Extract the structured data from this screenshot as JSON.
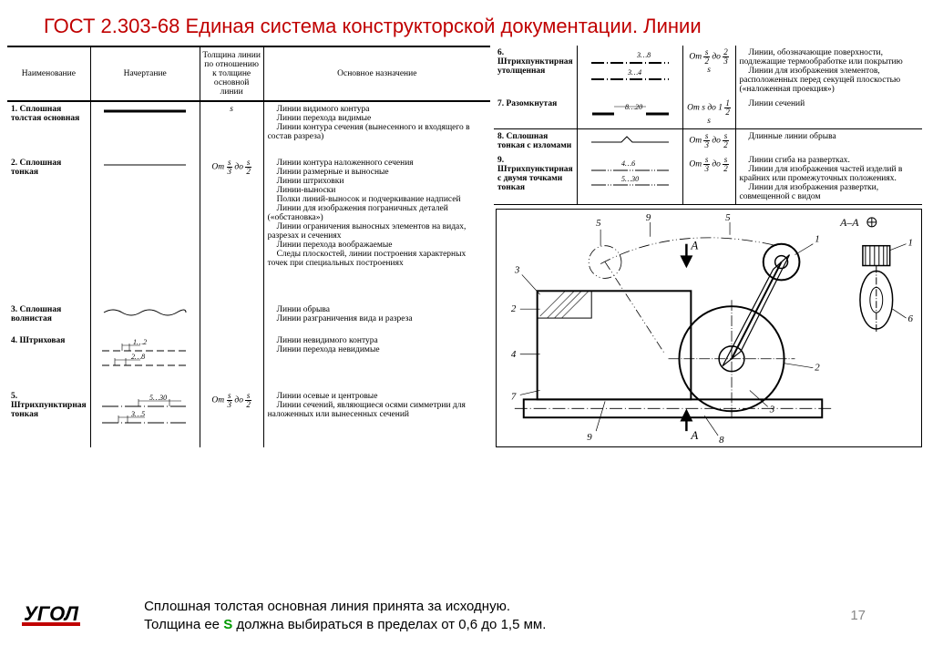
{
  "title": "ГОСТ 2.303-68 Единая система конструкторской документации. Линии",
  "headers": {
    "name": "Наименование",
    "drawing": "Начертание",
    "thickness": "Толщина линии по отношению к толщине основной линии",
    "purpose": "Основное назначение"
  },
  "rows_left": [
    {
      "n": "1. Сплошная толстая основная",
      "thick": "s",
      "purpose_lines": [
        "Линии видимого контура",
        "Линии перехода видимые",
        "Линии контура сечения (вынесенного и входящего в состав разреза)"
      ]
    },
    {
      "n": "2. Сплошная тонкая",
      "thick_html": "От <span class='frac'><span class='n'>s</span><span class='d'>3</span></span> до <span class='frac'><span class='n'>s</span><span class='d'>2</span></span>",
      "purpose_lines": [
        "Линии контура наложенного сечения",
        "Линии размерные и выносные",
        "Линии штриховки",
        "Линии-выноски",
        "Полки линий-выносок и подчеркивание надписей",
        "Линии для изображения пограничных деталей («обстановка»)",
        "Линии ограничения выносных элементов на видах, разрезах и сечениях",
        "Линии перехода воображаемые",
        "Следы плоскостей, линии построения характерных точек при специальных построениях"
      ]
    },
    {
      "n": "3. Сплошная волнистая",
      "thick": "",
      "purpose_lines": [
        "Линии обрыва",
        "Линии разграничения вида и разреза"
      ]
    },
    {
      "n": "4. Штриховая",
      "thick": "",
      "dims": [
        "1…2",
        "2…8"
      ],
      "purpose_lines": [
        "Линии невидимого контура",
        "Линии перехода невидимые"
      ]
    },
    {
      "n": "5. Штрихпунктирная тонкая",
      "thick_html": "От <span class='frac'><span class='n'>s</span><span class='d'>3</span></span> до <span class='frac'><span class='n'>s</span><span class='d'>2</span></span>",
      "dims": [
        "5…30",
        "3…5"
      ],
      "purpose_lines": [
        "Линии осевые и центровые",
        "Линии сечений, являющиеся осями симметрии для наложенных или вынесенных сечений"
      ]
    }
  ],
  "rows_right": [
    {
      "n": "6. Штрихпунктирная утолщенная",
      "dims": [
        "3…8",
        "3…4"
      ],
      "thick_html": "От <span class='frac'><span class='n'>s</span><span class='d'>2</span></span> до <span class='frac'><span class='n'>2</span><span class='d'>3</span></span> s",
      "purpose_lines": [
        "Линии, обозначающие поверхности, подлежащие термообработке или покрытию",
        "Линии для изображения элементов, расположенных перед секущей плоскостью («наложенная проекция»)"
      ]
    },
    {
      "n": "7. Разомкнутая",
      "dims": [
        "8…20"
      ],
      "thick_html": "От s до 1 <span class='frac'><span class='n'>1</span><span class='d'>2</span></span> s",
      "purpose_lines": [
        "Линии сечений"
      ]
    },
    {
      "n": "8. Сплошная тонкая с изломами",
      "thick_html": "От <span class='frac'><span class='n'>s</span><span class='d'>3</span></span> до <span class='frac'><span class='n'>s</span><span class='d'>2</span></span>",
      "purpose_lines": [
        "Длинные линии обрыва"
      ]
    },
    {
      "n": "9. Штрихпунктирная с двумя точками тонкая",
      "dims": [
        "4…6",
        "5…30"
      ],
      "thick_html": "От <span class='frac'><span class='n'>s</span><span class='d'>3</span></span> до <span class='frac'><span class='n'>s</span><span class='d'>2</span></span>",
      "purpose_lines": [
        "Линии сгиба на развертках.",
        "Линии для изображения частей изделий в крайних или промежуточных положениях.",
        "Линии для изображения развертки, совмещенной с видом"
      ]
    }
  ],
  "diagram_labels": [
    "1",
    "2",
    "3",
    "4",
    "5",
    "6",
    "7",
    "8",
    "9"
  ],
  "diagram_section": "A–A",
  "footer": {
    "logo": "УГОЛ",
    "line1": "Сплошная толстая основная линия принята за исходную.",
    "line2_a": "Толщина ее ",
    "line2_s": "S",
    "line2_b": " должна выбираться в пределах от 0,6 до 1,5 мм.",
    "page": "17"
  }
}
